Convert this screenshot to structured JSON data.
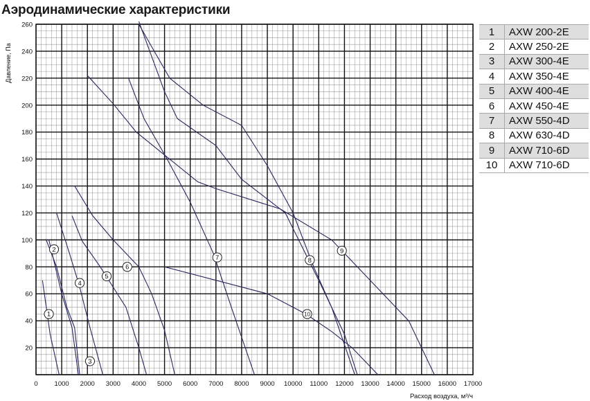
{
  "title": "Аэродинамические характеристики",
  "chart_data": {
    "type": "line",
    "xlabel": "Расход воздуха, м³/ч",
    "ylabel": "Давление, Па",
    "xlim": [
      0,
      17000
    ],
    "ylim": [
      0,
      260
    ],
    "x_ticks": [
      "0",
      "1000",
      "2000",
      "3000",
      "4000",
      "5000",
      "6000",
      "7000",
      "8000",
      "9000",
      "10000",
      "11000",
      "12000",
      "13000",
      "14000",
      "15000",
      "16000",
      "17000"
    ],
    "y_ticks": [
      "20",
      "40",
      "60",
      "80",
      "100",
      "120",
      "140",
      "160",
      "180",
      "200",
      "220",
      "240",
      "260"
    ],
    "grid": true,
    "line_color": "#27275e",
    "series": [
      {
        "label": "1",
        "label_at": [
          500,
          45
        ],
        "points": [
          [
            250,
            70
          ],
          [
            550,
            30
          ],
          [
            900,
            0
          ]
        ]
      },
      {
        "label": "2",
        "label_at": [
          700,
          93
        ],
        "points": [
          [
            500,
            100
          ],
          [
            1000,
            60
          ],
          [
            1400,
            35
          ],
          [
            1650,
            0
          ]
        ]
      },
      {
        "label": "3",
        "label_at": [
          2100,
          10
        ],
        "points": [
          [
            400,
            100
          ],
          [
            800,
            80
          ],
          [
            1200,
            50
          ],
          [
            1500,
            35
          ],
          [
            1700,
            0
          ]
        ]
      },
      {
        "label": "4",
        "label_at": [
          1700,
          68
        ],
        "points": [
          [
            800,
            120
          ],
          [
            1300,
            90
          ],
          [
            1700,
            65
          ],
          [
            2100,
            35
          ],
          [
            2600,
            0
          ]
        ]
      },
      {
        "label": "5",
        "label_at": [
          2750,
          73
        ],
        "points": [
          [
            1400,
            118
          ],
          [
            1800,
            99
          ],
          [
            2500,
            80
          ],
          [
            3500,
            50
          ],
          [
            4000,
            20
          ],
          [
            4300,
            0
          ]
        ]
      },
      {
        "label": "6",
        "label_at": [
          3550,
          80
        ],
        "points": [
          [
            1500,
            140
          ],
          [
            2200,
            118
          ],
          [
            3000,
            100
          ],
          [
            4000,
            80
          ],
          [
            4500,
            60
          ],
          [
            5000,
            33
          ],
          [
            5400,
            0
          ]
        ]
      },
      {
        "label": "7",
        "label_at": [
          7050,
          87
        ],
        "points": [
          [
            3600,
            220
          ],
          [
            4200,
            190
          ],
          [
            5100,
            160
          ],
          [
            6000,
            128
          ],
          [
            6900,
            90
          ],
          [
            7600,
            50
          ],
          [
            8500,
            0
          ]
        ]
      },
      {
        "label": "8",
        "label_at": [
          10650,
          85
        ],
        "points": [
          [
            4000,
            262
          ],
          [
            5000,
            210
          ],
          [
            5500,
            190
          ],
          [
            7000,
            170
          ],
          [
            8000,
            145
          ],
          [
            9700,
            120
          ],
          [
            11000,
            70
          ],
          [
            12000,
            30
          ],
          [
            12500,
            0
          ]
        ]
      },
      {
        "label": "9",
        "label_at": [
          11900,
          92
        ],
        "points": [
          [
            4000,
            260
          ],
          [
            4600,
            240
          ],
          [
            5200,
            220
          ],
          [
            6500,
            200
          ],
          [
            8000,
            185
          ],
          [
            9000,
            155
          ],
          [
            10000,
            120
          ],
          [
            10800,
            80
          ],
          [
            11500,
            50
          ],
          [
            12400,
            0
          ]
        ]
      },
      {
        "label": "10",
        "label_at": [
          10550,
          45
        ],
        "points": [
          [
            2000,
            222
          ],
          [
            3000,
            201
          ],
          [
            3900,
            180
          ],
          [
            5000,
            163
          ],
          [
            6300,
            143
          ],
          [
            7000,
            138
          ],
          [
            9500,
            123
          ],
          [
            11500,
            100
          ],
          [
            12500,
            80
          ],
          [
            13500,
            60
          ],
          [
            14500,
            40
          ],
          [
            15000,
            20
          ],
          [
            15500,
            0
          ]
        ]
      },
      {
        "label": "",
        "label_at": null,
        "points": [
          [
            5000,
            80
          ],
          [
            9000,
            60
          ],
          [
            10500,
            45
          ],
          [
            11500,
            32
          ],
          [
            12300,
            20
          ],
          [
            13300,
            0
          ]
        ]
      }
    ]
  },
  "legend": [
    {
      "num": "1",
      "model": "AXW 200-2E"
    },
    {
      "num": "2",
      "model": "AXW 250-2E"
    },
    {
      "num": "3",
      "model": "AXW 300-4E"
    },
    {
      "num": "4",
      "model": "AXW 350-4E"
    },
    {
      "num": "5",
      "model": "AXW 400-4E"
    },
    {
      "num": "6",
      "model": "AXW 450-4E"
    },
    {
      "num": "7",
      "model": "AXW 550-4D"
    },
    {
      "num": "8",
      "model": "AXW 630-4D"
    },
    {
      "num": "9",
      "model": "AXW 710-6D"
    },
    {
      "num": "10",
      "model": "AXW 710-6D"
    }
  ]
}
